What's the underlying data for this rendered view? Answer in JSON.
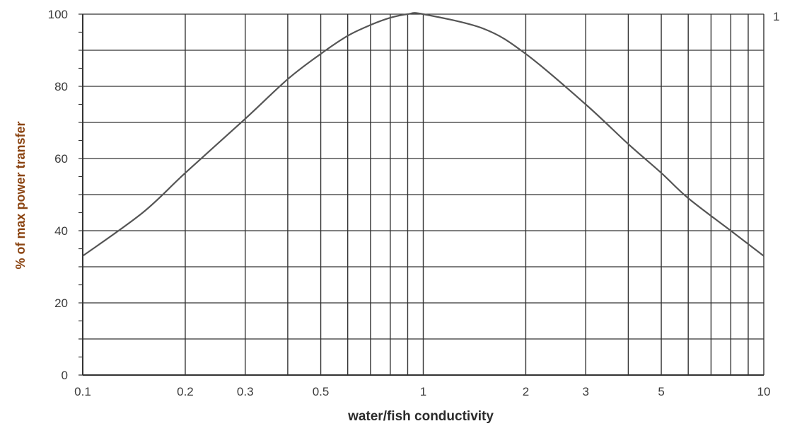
{
  "chart_data": {
    "type": "line",
    "x_scale": "log",
    "xlabel": "water/fish conductivity",
    "ylabel": "% of max power transfer",
    "xlim": [
      0.1,
      10
    ],
    "ylim": [
      0,
      100
    ],
    "x_ticks": [
      0.1,
      0.2,
      0.3,
      0.5,
      1,
      2,
      3,
      5,
      10
    ],
    "x_tick_labels": [
      "0.1",
      "0.2",
      "0.3",
      "0.5",
      "1",
      "2",
      "3",
      "5",
      "10"
    ],
    "x_gridlines": [
      0.1,
      0.2,
      0.3,
      0.4,
      0.5,
      0.6,
      0.7,
      0.8,
      0.9,
      1,
      2,
      3,
      4,
      5,
      6,
      7,
      8,
      9,
      10
    ],
    "y_ticks": [
      0,
      20,
      40,
      60,
      80,
      100
    ],
    "y_tick_labels": [
      "0",
      "20",
      "40",
      "60",
      "80",
      "100"
    ],
    "y_gridlines": [
      10,
      20,
      30,
      40,
      50,
      60,
      70,
      80,
      90,
      100
    ],
    "grid": true,
    "right_axis_label": "1",
    "series": [
      {
        "x": [
          0.1,
          0.15,
          0.2,
          0.3,
          0.4,
          0.5,
          0.6,
          0.7,
          0.8,
          0.9,
          1,
          1.5,
          2,
          3,
          4,
          5,
          6,
          8,
          10
        ],
        "y": [
          33,
          45,
          56,
          71,
          82,
          89,
          94,
          97,
          99,
          100,
          100,
          96,
          89,
          75,
          64,
          56,
          49,
          40,
          33
        ]
      }
    ],
    "colors": {
      "curve": "#555555",
      "grid": "#333333",
      "ylabel": "#8b4513",
      "xlabel": "#2b2b2b"
    }
  }
}
